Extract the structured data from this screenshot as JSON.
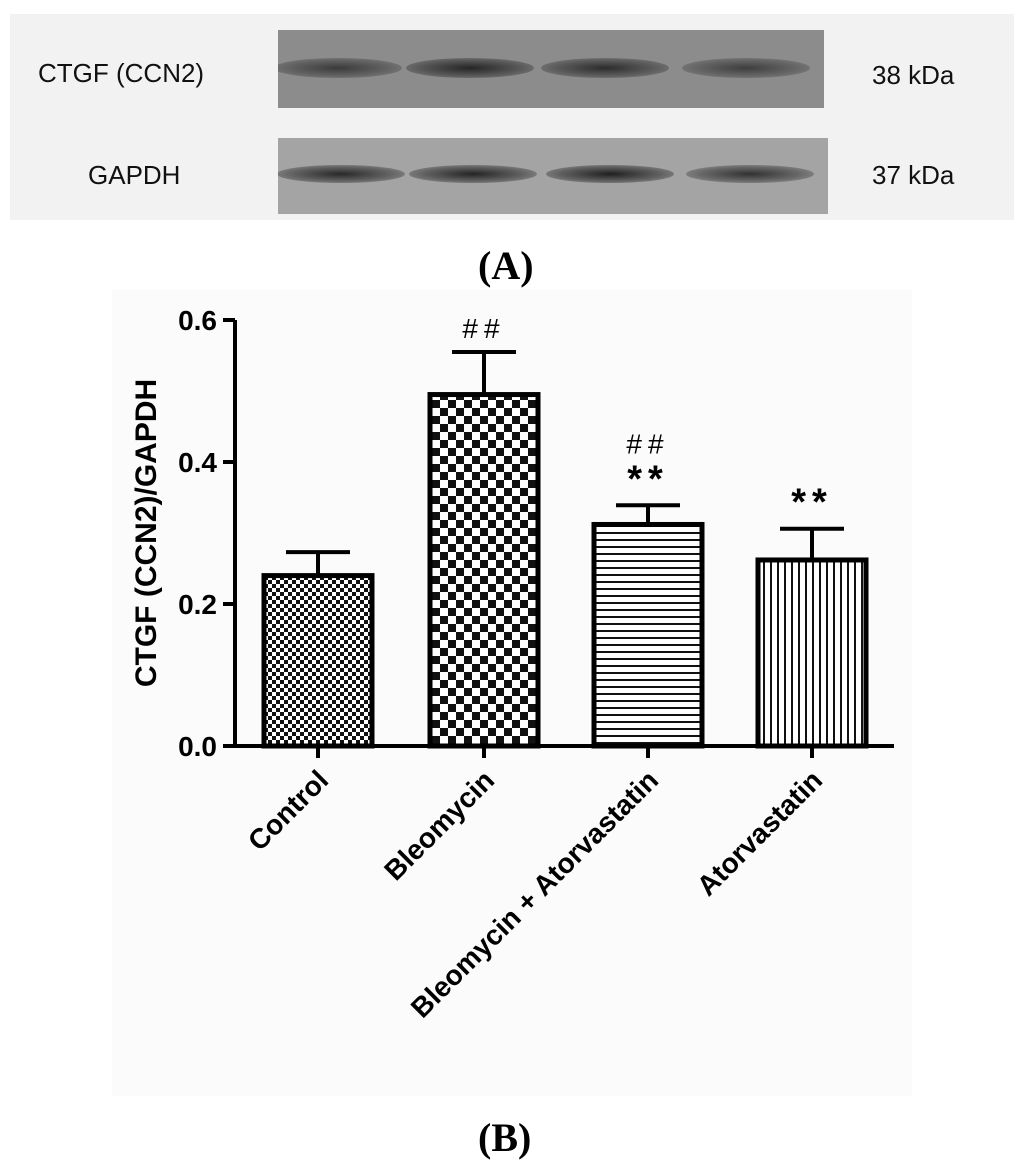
{
  "panel_a": {
    "label": "(A)",
    "rows": [
      {
        "protein": "CTGF (CCN2)",
        "mw": "38 kDa",
        "band_intensity": [
          0.55,
          0.85,
          0.75,
          0.5
        ]
      },
      {
        "protein": "GAPDH",
        "mw": "37 kDa",
        "band_intensity": [
          0.85,
          0.9,
          0.95,
          0.75
        ]
      }
    ]
  },
  "panel_b": {
    "label": "(B)"
  },
  "colors": {
    "ink": "#000000",
    "blot_dark": "#2a2a2a"
  },
  "chart_data": {
    "type": "bar",
    "categories": [
      "Control",
      "Bleomycin",
      "Bleomycin + Atorvastatin",
      "Atorvastatin"
    ],
    "values": [
      0.24,
      0.495,
      0.312,
      0.262
    ],
    "errors": [
      0.033,
      0.06,
      0.027,
      0.044
    ],
    "patterns": [
      "fine-checker",
      "coarse-checker",
      "horizontal-lines",
      "vertical-lines"
    ],
    "annotations": [
      {
        "category": "Bleomycin",
        "lines": [
          "##"
        ]
      },
      {
        "category": "Bleomycin + Atorvastatin",
        "lines": [
          "##",
          "**"
        ]
      },
      {
        "category": "Atorvastatin",
        "lines": [
          "**"
        ]
      }
    ],
    "xlabel": "",
    "ylabel": "CTGF (CCN2)/GAPDH",
    "ylim": [
      0,
      0.6
    ],
    "yticks": [
      "0.0",
      "0.2",
      "0.4",
      "0.6"
    ],
    "grid": false
  }
}
